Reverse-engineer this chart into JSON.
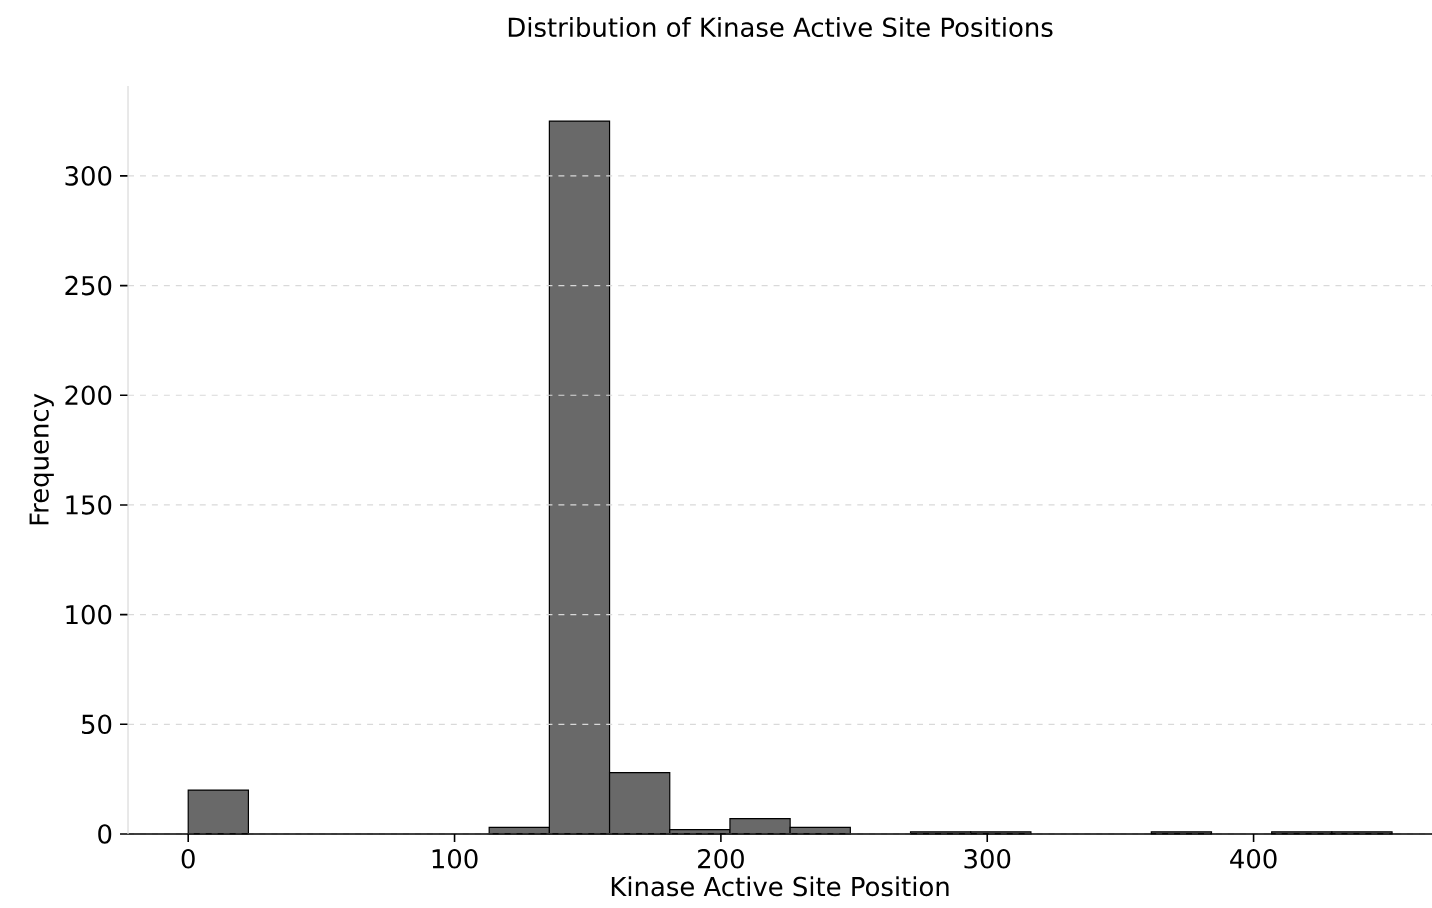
{
  "chart_data": {
    "type": "histogram",
    "title": "Distribution of Kinase Active Site Positions",
    "xlabel": "Kinase Active Site Position",
    "ylabel": "Frequency",
    "bins": [
      0,
      22.6,
      45.2,
      67.8,
      90.4,
      113,
      135.6,
      158.2,
      180.8,
      203.4,
      226,
      248.6,
      271.2,
      293.8,
      316.4,
      339,
      361.6,
      384.2,
      406.8,
      429.4,
      452
    ],
    "values": [
      20,
      0,
      0,
      0,
      0,
      3,
      325,
      28,
      2,
      7,
      3,
      0,
      1,
      1,
      0,
      0,
      1,
      0,
      1,
      1
    ],
    "color": "#696969",
    "xlim": [
      -22.6,
      467
    ],
    "ylim": [
      0,
      341
    ],
    "xticks": [
      0,
      100,
      200,
      300,
      400
    ],
    "yticks": [
      0,
      50,
      100,
      150,
      200,
      250,
      300
    ],
    "grid": "y"
  }
}
